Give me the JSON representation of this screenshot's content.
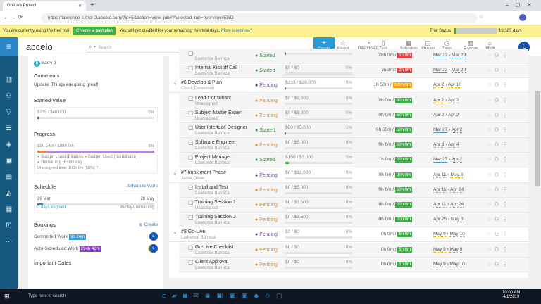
{
  "browser": {
    "tab_title": "Go-Live Project",
    "url": "https://lawrence-s-trial-2.accelo.com/?id=5&action=view_job#?selected_tab=overview#END"
  },
  "banner": {
    "text1": "You are currently using the free trial",
    "button": "Choose a paid plan",
    "text2": "You still get credited for your remaining free trial days.",
    "link": "More questions?",
    "trial_label": "Trial Status",
    "trial_days": "19/385 days",
    "trial_fraction": 0.05
  },
  "header": {
    "logo": "accelo",
    "search_placeholder": "Search",
    "create": "Create",
    "nav": [
      {
        "label": "Saved",
        "icon": "☆"
      },
      {
        "label": "Dashboard",
        "icon": "◔"
      },
      {
        "label": "Task",
        "icon": "▯"
      },
      {
        "label": "Schedule",
        "icon": "▦"
      },
      {
        "label": "Stream",
        "icon": "◫"
      },
      {
        "label": "Time",
        "icon": "◷"
      },
      {
        "label": "Reports",
        "icon": "▥"
      },
      {
        "label": "Inbox",
        "icon": "⌂"
      }
    ],
    "avatar": "L"
  },
  "left": {
    "member": "Barry J",
    "comments_title": "Comments",
    "comment": "Update: Things are going great!",
    "earned_title": "Earned Value",
    "earned_value": "$235 / $40,000",
    "earned_pct": "0%",
    "progress_title": "Progress",
    "progress_value": "15h 54m / 199h 0m",
    "progress_pct": "8%",
    "legend": [
      "Budget Used (Billable)",
      "Budget Used (Nonbillable)",
      "Remaining (Estimate)"
    ],
    "unassigned": "Unassigned time: 100h 0m (50%)",
    "schedule_title": "Schedule",
    "schedule_link": "Schedule Work",
    "start": "29 Mar",
    "end": "28 May",
    "elapsed": "2 days elapsed",
    "remaining": "36 days remaining",
    "schedule_fraction": 0.05,
    "bookings_title": "Bookings",
    "bookings_create": "Create",
    "committed": "Committed Work",
    "committed_val": "9h 24m",
    "auto": "Auto-Scheduled Work",
    "auto_val": "294h 46m",
    "dates_title": "Important Dates"
  },
  "rows": [
    {
      "type": "task",
      "title": "",
      "assignee": "Lawrence Barreca",
      "status": "Started",
      "budget": "",
      "pct": "",
      "logged": "28h 0m /",
      "est": "1h 0m",
      "est_color": "#e04545",
      "start": "Mar 22",
      "end": "Mar 29"
    },
    {
      "type": "task",
      "title": "Internal Kickoff Call",
      "assignee": "Lawrence Barreca",
      "status": "Started",
      "budget": "$0 / $0",
      "pct": "0%",
      "logged": "7h 3m /",
      "est": "2h 0m",
      "est_color": "#e04545",
      "start": "Mar 22",
      "end": "Mar 29"
    },
    {
      "type": "phase",
      "title": "#6 Develop & Plan",
      "assignee": "Chuck Donaldson",
      "status": "Pending",
      "budget": "$233 / $28,000",
      "pct": "0%",
      "logged": "1h 50m /",
      "est": "100h 0m",
      "est_color": "#f0a319",
      "start": "Apr 2",
      "end": "Apr 10"
    },
    {
      "type": "task",
      "title": "Lead Consultant",
      "assignee": "Unassigned",
      "status": "Pending",
      "budget": "$0 / $9,000",
      "pct": "0%",
      "logged": "0h 0m /",
      "est": "30h 0m",
      "est_color": "#3fae49",
      "start": "Apr 2",
      "end": "Apr 2"
    },
    {
      "type": "task",
      "title": "Subject Matter Expert",
      "assignee": "Unassigned",
      "status": "Pending",
      "budget": "$0 / $5,000",
      "pct": "0%",
      "logged": "0h 0m /",
      "est": "50h 0m",
      "est_color": "#3fae49",
      "start": "Apr 2",
      "end": "Apr 2"
    },
    {
      "type": "task",
      "title": "User Interface Designer",
      "assignee": "Lawrence Barreca",
      "status": "Started",
      "budget": "$83 / $5,000",
      "pct": "1%",
      "logged": "0h 50m /",
      "est": "50h 0m",
      "est_color": "#3fae49",
      "start": "Mar 27",
      "end": "Apr 2"
    },
    {
      "type": "task",
      "title": "Software Engineer",
      "assignee": "Lawrence Barreca",
      "status": "Pending",
      "budget": "$0 / $6,000",
      "pct": "0%",
      "logged": "0h 0m /",
      "est": "60h 0m",
      "est_color": "#3fae49",
      "start": "Apr 3",
      "end": "Apr 4"
    },
    {
      "type": "task",
      "title": "Project Manager",
      "assignee": "Lawrence Barreca",
      "status": "Started",
      "budget": "$150 / $3,000",
      "pct": "5%",
      "logged": "1h 0m /",
      "est": "20h 0m",
      "est_color": "#3fae49",
      "start": "Mar 27",
      "end": "Apr 2"
    },
    {
      "type": "phase",
      "title": "#7 Implement Phase",
      "assignee": "Jamie Oliver",
      "status": "Pending",
      "budget": "$0 / $12,000",
      "pct": "0%",
      "logged": "0h 0m /",
      "est": "90h 0m",
      "est_color": "#3fae49",
      "start": "Apr 11",
      "end": "May 8"
    },
    {
      "type": "task",
      "title": "Install and Test",
      "assignee": "Lawrence Barreca",
      "status": "Pending",
      "budget": "$0 / $5,000",
      "pct": "0%",
      "logged": "0h 0m /",
      "est": "50h 0m",
      "est_color": "#3fae49",
      "start": "Apr 11",
      "end": "Apr 24"
    },
    {
      "type": "task",
      "title": "Training Session 1",
      "assignee": "Unassigned",
      "status": "Pending",
      "budget": "$0 / $3,500",
      "pct": "0%",
      "logged": "0h 0m /",
      "est": "20h 0m",
      "est_color": "#3fae49",
      "start": "Apr 11",
      "end": "Apr 24"
    },
    {
      "type": "task",
      "title": "Training Session 2",
      "assignee": "Lawrence Barreca",
      "status": "Pending",
      "budget": "$0 / $3,500",
      "pct": "0%",
      "logged": "0h 0m /",
      "est": "20h 0m",
      "est_color": "#3fae49",
      "start": "Apr 25",
      "end": "May 8"
    },
    {
      "type": "phase",
      "title": "#8 Go-Live",
      "assignee": "Lawrence Barreca",
      "status": "Pending",
      "budget": "$0 / $0",
      "pct": "0%",
      "logged": "0h 0m /",
      "est": "6h 0m",
      "est_color": "#3fae49",
      "start": "May 9",
      "end": "May 10"
    },
    {
      "type": "task",
      "title": "Go-Live Checklist",
      "assignee": "Lawrence Barreca",
      "status": "Pending",
      "budget": "$0 / $0",
      "pct": "0%",
      "logged": "0h 0m /",
      "est": "5h 0m",
      "est_color": "#3fae49",
      "start": "May 9",
      "end": "May 9"
    },
    {
      "type": "task",
      "title": "Client Approval",
      "assignee": "Lawrence Barreca",
      "status": "Pending",
      "budget": "$0 / $0",
      "pct": "0%",
      "logged": "0h 0m /",
      "est": "1h 0m",
      "est_color": "#3fae49",
      "start": "May 9",
      "end": "May 10"
    }
  ],
  "taskbar": {
    "search": "Type here to search",
    "time": "10:00 AM",
    "date": "4/1/2019"
  }
}
